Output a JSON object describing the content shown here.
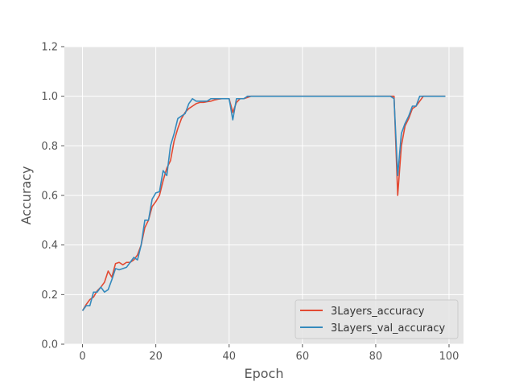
{
  "chart_data": {
    "type": "line",
    "title": "",
    "xlabel": "Epoch",
    "ylabel": "Accuracy",
    "xlim": [
      -4.95,
      103.95
    ],
    "ylim": [
      0.0,
      1.2
    ],
    "xticks": [
      0,
      20,
      40,
      60,
      80,
      100
    ],
    "yticks": [
      0.0,
      0.2,
      0.4,
      0.6,
      0.8,
      1.0,
      1.2
    ],
    "xtick_labels": [
      "0",
      "20",
      "40",
      "60",
      "80",
      "100"
    ],
    "ytick_labels": [
      "0.0",
      "0.2",
      "0.4",
      "0.6",
      "0.8",
      "1.0",
      "1.2"
    ],
    "grid": true,
    "style": "ggplot",
    "legend": "lower-right",
    "x": [
      0,
      1,
      2,
      3,
      4,
      5,
      6,
      7,
      8,
      9,
      10,
      11,
      12,
      13,
      14,
      15,
      16,
      17,
      18,
      19,
      20,
      21,
      22,
      23,
      24,
      25,
      26,
      27,
      28,
      29,
      30,
      31,
      32,
      33,
      34,
      35,
      36,
      37,
      38,
      39,
      40,
      41,
      42,
      43,
      44,
      45,
      46,
      47,
      48,
      49,
      50,
      51,
      52,
      53,
      54,
      55,
      56,
      57,
      58,
      59,
      60,
      61,
      62,
      63,
      64,
      65,
      66,
      67,
      68,
      69,
      70,
      71,
      72,
      73,
      74,
      75,
      76,
      77,
      78,
      79,
      80,
      81,
      82,
      83,
      84,
      85,
      86,
      87,
      88,
      89,
      90,
      91,
      92,
      93,
      94,
      95,
      96,
      97,
      98,
      99
    ],
    "series": [
      {
        "name": "3Layers_accuracy",
        "color": "#E24A33",
        "values": [
          0.135,
          0.16,
          0.18,
          0.19,
          0.215,
          0.23,
          0.25,
          0.295,
          0.27,
          0.325,
          0.33,
          0.32,
          0.33,
          0.33,
          0.34,
          0.36,
          0.4,
          0.47,
          0.5,
          0.555,
          0.575,
          0.6,
          0.66,
          0.71,
          0.74,
          0.82,
          0.87,
          0.91,
          0.935,
          0.95,
          0.96,
          0.97,
          0.975,
          0.975,
          0.978,
          0.98,
          0.985,
          0.988,
          0.99,
          0.99,
          0.99,
          0.935,
          0.975,
          0.99,
          0.99,
          0.995,
          1.0,
          1.0,
          1.0,
          1.0,
          1.0,
          1.0,
          1.0,
          1.0,
          1.0,
          1.0,
          1.0,
          1.0,
          1.0,
          1.0,
          1.0,
          1.0,
          1.0,
          1.0,
          1.0,
          1.0,
          1.0,
          1.0,
          1.0,
          1.0,
          1.0,
          1.0,
          1.0,
          1.0,
          1.0,
          1.0,
          1.0,
          1.0,
          1.0,
          1.0,
          1.0,
          1.0,
          1.0,
          1.0,
          1.0,
          1.0,
          0.6,
          0.8,
          0.88,
          0.91,
          0.95,
          0.96,
          0.98,
          1.0,
          1.0,
          1.0,
          1.0,
          1.0,
          1.0,
          1.0
        ]
      },
      {
        "name": "3Layers_val_accuracy",
        "color": "#348ABD",
        "values": [
          0.135,
          0.155,
          0.155,
          0.21,
          0.21,
          0.23,
          0.21,
          0.22,
          0.26,
          0.305,
          0.3,
          0.305,
          0.31,
          0.33,
          0.35,
          0.34,
          0.4,
          0.5,
          0.5,
          0.585,
          0.61,
          0.615,
          0.7,
          0.68,
          0.8,
          0.85,
          0.91,
          0.92,
          0.93,
          0.97,
          0.99,
          0.98,
          0.98,
          0.98,
          0.98,
          0.99,
          0.99,
          0.99,
          0.99,
          0.99,
          0.99,
          0.905,
          0.99,
          0.99,
          0.99,
          1.0,
          1.0,
          1.0,
          1.0,
          1.0,
          1.0,
          1.0,
          1.0,
          1.0,
          1.0,
          1.0,
          1.0,
          1.0,
          1.0,
          1.0,
          1.0,
          1.0,
          1.0,
          1.0,
          1.0,
          1.0,
          1.0,
          1.0,
          1.0,
          1.0,
          1.0,
          1.0,
          1.0,
          1.0,
          1.0,
          1.0,
          1.0,
          1.0,
          1.0,
          1.0,
          1.0,
          1.0,
          1.0,
          1.0,
          1.0,
          0.99,
          0.68,
          0.85,
          0.89,
          0.92,
          0.96,
          0.96,
          1.0,
          1.0,
          1.0,
          1.0,
          1.0,
          1.0,
          1.0,
          1.0
        ]
      }
    ]
  }
}
